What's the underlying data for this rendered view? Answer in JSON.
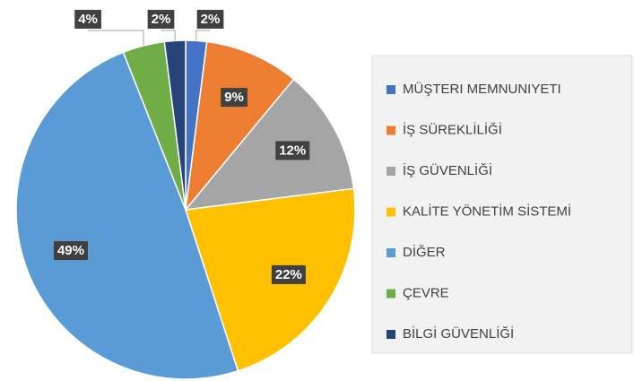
{
  "chart_data": {
    "type": "pie",
    "categories": [
      "MÜŞTERI MEMNUNIYETI",
      "İŞ SÜREKLİLİĞİ",
      "İŞ GÜVENLİĞİ",
      "KALİTE YÖNETİM SİSTEMİ",
      "DİĞER",
      "ÇEVRE",
      "BİLGİ GÜVENLİĞİ"
    ],
    "values": [
      2,
      9,
      12,
      22,
      49,
      4,
      2
    ],
    "value_labels": [
      "2%",
      "9%",
      "12%",
      "22%",
      "49%",
      "4%",
      "2%"
    ],
    "colors": [
      "#4472c4",
      "#ed7d31",
      "#a5a5a5",
      "#ffc000",
      "#5b9bd5",
      "#70ad47",
      "#264478"
    ],
    "legend": "right"
  }
}
